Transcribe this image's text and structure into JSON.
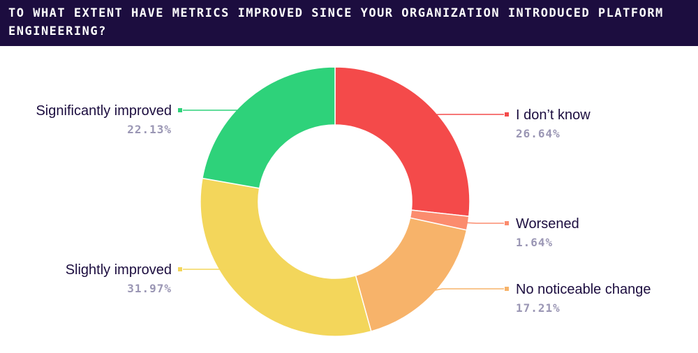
{
  "chart_data": {
    "type": "pie",
    "donut": true,
    "title": "TO WHAT EXTENT HAVE METRICS IMPROVED SINCE YOUR ORGANIZATION INTRODUCED PLATFORM ENGINEERING?",
    "slices": [
      {
        "label": "I don’t know",
        "value": 26.64,
        "value_label": "26.64%",
        "color": "#f44a4a"
      },
      {
        "label": "Worsened",
        "value": 1.64,
        "value_label": "1.64%",
        "color": "#fb8c6e"
      },
      {
        "label": "No noticeable change",
        "value": 17.21,
        "value_label": "17.21%",
        "color": "#f7b36a"
      },
      {
        "label": "Slightly improved",
        "value": 31.97,
        "value_label": "31.97%",
        "color": "#f3d65b"
      },
      {
        "label": "Significantly improved",
        "value": 22.13,
        "value_label": "22.13%",
        "color": "#2ed27a"
      }
    ]
  }
}
